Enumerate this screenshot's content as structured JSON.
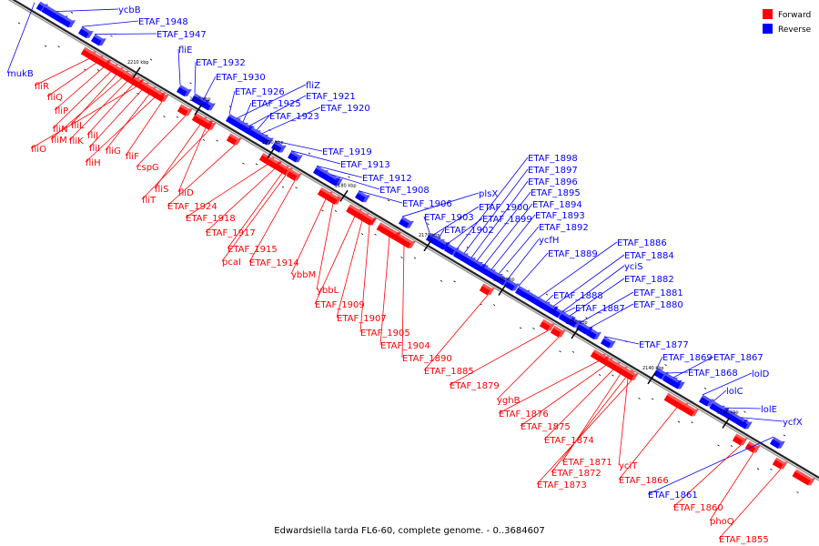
{
  "caption": "Edwardsiella tarda FL6-60, complete genome. - 0..3684607",
  "legend": {
    "forward_label": "Forward",
    "reverse_label": "Reverse",
    "forward_color": "#ff0000",
    "reverse_color": "#0000ff"
  },
  "ticks": [
    "2210 kbp",
    "2200 kbp",
    "2190 kbp",
    "2180 kbp",
    "2170 kbp",
    "2160 kbp",
    "2150 kbp",
    "2140 kbp",
    "2130 kbp"
  ],
  "genes": {
    "reverse": [
      "ycbB",
      "ETAF_1948",
      "ETAF_1947",
      "fliE",
      "ETAF_1932",
      "ETAF_1930",
      "ETAF_1926",
      "fliZ",
      "ETAF_1925",
      "ETAF_1921",
      "ETAF_1923",
      "ETAF_1920",
      "ETAF_1919",
      "ETAF_1913",
      "ETAF_1912",
      "ETAF_1908",
      "ETAF_1906",
      "plsX",
      "ETAF_1903",
      "ETAF_1900",
      "ETAF_1902",
      "ETAF_1899",
      "ETAF_1898",
      "ETAF_1897",
      "ETAF_1896",
      "ETAF_1895",
      "ETAF_1894",
      "ETAF_1893",
      "ETAF_1892",
      "ycfH",
      "ETAF_1889",
      "ETAF_1886",
      "ETAF_1884",
      "yciS",
      "ETAF_1882",
      "ETAF_1888",
      "ETAF_1881",
      "ETAF_1887",
      "ETAF_1880",
      "ETAF_1877",
      "ETAF_1869",
      "ETAF_1867",
      "ETAF_1868",
      "lolD",
      "lolC",
      "lolE",
      "ycfX",
      "ETAF_1861",
      "mukB"
    ],
    "forward": [
      "fliR",
      "fliQ",
      "fliP",
      "fliN",
      "fliL",
      "fliM",
      "fliK",
      "fliJ",
      "fliO",
      "fliI",
      "fliG",
      "fliH",
      "fliF",
      "cspG",
      "fliS",
      "fliD",
      "fliT",
      "ETAF_1924",
      "ETAF_1918",
      "ETAF_1917",
      "ETAF_1915",
      "pcaI",
      "ETAF_1914",
      "ybbM",
      "ybbL",
      "ETAF_1909",
      "ETAF_1907",
      "ETAF_1905",
      "ETAF_1904",
      "ETAF_1890",
      "ETAF_1885",
      "ETAF_1879",
      "yghB",
      "ETAF_1876",
      "ETAF_1875",
      "ETAF_1874",
      "ETAF_1871",
      "yciT",
      "ETAF_1872",
      "ETAF_1873",
      "ETAF_1866",
      "ETAF_1860",
      "phoQ",
      "ETAF_1855"
    ]
  }
}
